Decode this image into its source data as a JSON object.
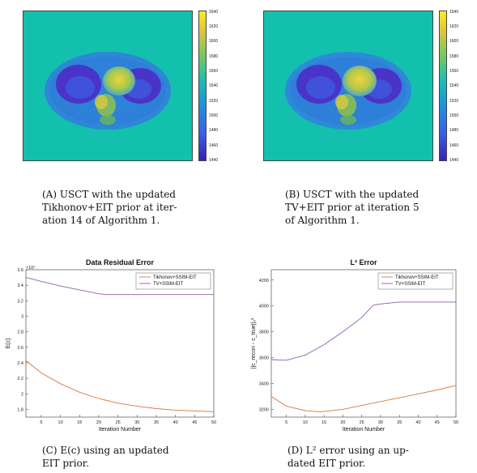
{
  "panelA": {
    "colorbar_ticks": [
      "1640",
      "1620",
      "1600",
      "1580",
      "1560",
      "1540",
      "1520",
      "1500",
      "1480",
      "1460",
      "1440"
    ],
    "caption_lines": [
      "(A) USCT with the updated",
      "Tikhonov+EIT prior at iter-",
      "ation 14 of Algorithm 1."
    ]
  },
  "panelB": {
    "colorbar_ticks": [
      "1640",
      "1620",
      "1600",
      "1580",
      "1560",
      "1540",
      "1520",
      "1500",
      "1480",
      "1460",
      "1440"
    ],
    "caption_lines": [
      "(B) USCT with the updated",
      "TV+EIT prior at iteration 5",
      "of Algorithm 1."
    ]
  },
  "panelC": {
    "caption_lines": [
      "(C) E(c) using an updated",
      "EIT prior."
    ]
  },
  "panelD": {
    "caption_lines": [
      "(D) L² error using an up-",
      "dated EIT prior."
    ]
  },
  "chart_data": [
    {
      "type": "line",
      "title": "Data Residual Error",
      "xlabel": "Iteration Number",
      "ylabel": "E(c)",
      "exponent_label": "×10⁵",
      "xlim": [
        1,
        50
      ],
      "ylim": [
        1.7,
        3.6
      ],
      "xticks": [
        5,
        10,
        15,
        20,
        25,
        30,
        35,
        40,
        45,
        50
      ],
      "yticks": [
        1.8,
        2,
        2.2,
        2.4,
        2.6,
        2.8,
        3,
        3.2,
        3.4,
        3.6
      ],
      "yticklabels": [
        "1.8",
        "2",
        "2.2",
        "2.4",
        "2.6",
        "2.8",
        "3",
        "3.2",
        "3.4",
        "3.6"
      ],
      "legend_position": "top-right",
      "series": [
        {
          "name": "Tikhonov+SSIM-EIT",
          "color": "#d9773f",
          "x": [
            1,
            5,
            10,
            15,
            20,
            25,
            30,
            35,
            40,
            45,
            50
          ],
          "values": [
            2.43,
            2.27,
            2.13,
            2.02,
            1.94,
            1.88,
            1.84,
            1.81,
            1.79,
            1.78,
            1.77
          ]
        },
        {
          "name": "TV+SSIM-EIT",
          "color": "#8e5fa8",
          "x": [
            1,
            5,
            10,
            15,
            20,
            22,
            25,
            30,
            35,
            40,
            45,
            50
          ],
          "values": [
            3.5,
            3.45,
            3.39,
            3.34,
            3.29,
            3.28,
            3.28,
            3.28,
            3.28,
            3.28,
            3.28,
            3.28
          ]
        }
      ]
    },
    {
      "type": "line",
      "title": "L² Error",
      "xlabel": "Iteration Number",
      "ylabel": "||c_recon - c_true||₂²",
      "xlim": [
        1,
        50
      ],
      "ylim": [
        3140,
        4280
      ],
      "xticks": [
        5,
        10,
        15,
        20,
        25,
        30,
        35,
        40,
        45,
        50
      ],
      "yticks": [
        3200,
        3400,
        3600,
        3800,
        4000,
        4200
      ],
      "yticklabels": [
        "3200",
        "3400",
        "3600",
        "3800",
        "4000",
        "4200"
      ],
      "legend_position": "top-right",
      "series": [
        {
          "name": "Tikhonov+SSIM-EIT",
          "color": "#d9773f",
          "x": [
            1,
            5,
            10,
            14,
            20,
            25,
            30,
            35,
            40,
            45,
            50
          ],
          "values": [
            3300,
            3225,
            3190,
            3180,
            3200,
            3230,
            3260,
            3290,
            3320,
            3350,
            3385
          ]
        },
        {
          "name": "TV+SSIM-EIT",
          "color": "#8e5fa8",
          "x": [
            1,
            5,
            10,
            15,
            20,
            25,
            28,
            30,
            35,
            40,
            45,
            50
          ],
          "values": [
            3585,
            3580,
            3620,
            3700,
            3800,
            3910,
            4005,
            4015,
            4030,
            4030,
            4030,
            4030
          ]
        }
      ]
    }
  ]
}
